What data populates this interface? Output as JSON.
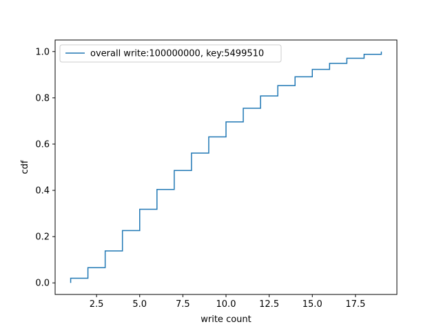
{
  "chart_data": {
    "type": "line",
    "drawstyle": "steps-post",
    "xlabel": "write count",
    "ylabel": "cdf",
    "xlim": [
      0.1,
      19.9
    ],
    "ylim": [
      -0.05,
      1.05
    ],
    "xticks": [
      2.5,
      5.0,
      7.5,
      10.0,
      12.5,
      15.0,
      17.5
    ],
    "xtick_labels": [
      "2.5",
      "5.0",
      "7.5",
      "10.0",
      "12.5",
      "15.0",
      "17.5"
    ],
    "yticks": [
      0.0,
      0.2,
      0.4,
      0.6,
      0.8,
      1.0
    ],
    "ytick_labels": [
      "0.0",
      "0.2",
      "0.4",
      "0.6",
      "0.8",
      "1.0"
    ],
    "grid": false,
    "legend_position": "upper-left",
    "series": [
      {
        "name": "overall write:100000000, key:5499510",
        "color": "#1f77b4",
        "x": [
          1,
          2,
          3,
          4,
          5,
          6,
          7,
          8,
          9,
          10,
          11,
          12,
          13,
          14,
          15,
          16,
          17,
          18,
          19
        ],
        "y": [
          0.02,
          0.066,
          0.138,
          0.226,
          0.318,
          0.404,
          0.486,
          0.561,
          0.631,
          0.696,
          0.755,
          0.808,
          0.853,
          0.891,
          0.923,
          0.949,
          0.971,
          0.988,
          1.0
        ]
      }
    ]
  }
}
